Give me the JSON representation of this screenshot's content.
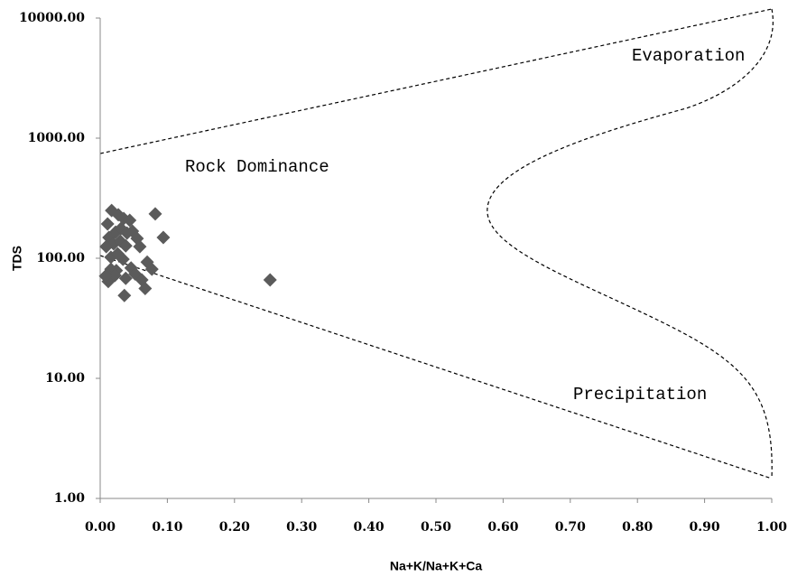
{
  "chart_data": {
    "type": "scatter",
    "x_label": "Na+K/Na+K+Ca",
    "y_label": "TDS",
    "annotations": [
      "Evaporation",
      "Rock Dominance",
      "Precipitation"
    ],
    "x": [
      0.017,
      0.027,
      0.011,
      0.035,
      0.044,
      0.082,
      0.023,
      0.031,
      0.04,
      0.048,
      0.055,
      0.013,
      0.02,
      0.03,
      0.038,
      0.059,
      0.009,
      0.016,
      0.026,
      0.034,
      0.094,
      0.016,
      0.024,
      0.046,
      0.052,
      0.07,
      0.077,
      0.012,
      0.022,
      0.038,
      0.062,
      0.067,
      0.036,
      0.253,
      0.008
    ],
    "values": [
      250,
      230,
      193,
      214,
      207,
      234,
      165,
      177,
      162,
      168,
      146,
      149,
      132,
      139,
      127,
      125,
      125,
      102,
      109,
      98,
      149,
      81,
      79,
      83,
      74,
      93,
      81,
      64,
      72,
      68,
      66,
      56,
      49,
      66,
      71
    ],
    "color": "#5b5b5b",
    "log_y": true,
    "grid": false,
    "xlim": [
      0,
      1
    ],
    "ylim": [
      1,
      10000
    ],
    "xticks": [
      {
        "value": 0,
        "label": "0.00"
      },
      {
        "value": 0.1,
        "label": "0.10"
      },
      {
        "value": 0.2,
        "label": "0.20"
      },
      {
        "value": 0.3,
        "label": "0.30"
      },
      {
        "value": 0.4,
        "label": "0.40"
      },
      {
        "value": 0.5,
        "label": "0.50"
      },
      {
        "value": 0.6,
        "label": "0.60"
      },
      {
        "value": 0.7,
        "label": "0.70"
      },
      {
        "value": 0.8,
        "label": "0.80"
      },
      {
        "value": 0.9,
        "label": "0.90"
      },
      {
        "value": 1,
        "label": "1.00"
      }
    ],
    "yticks": [
      {
        "value": 1,
        "label": "1.00"
      },
      {
        "value": 10,
        "label": "10.00"
      },
      {
        "value": 100,
        "label": "100.00"
      },
      {
        "value": 1000,
        "label": "1000.00"
      },
      {
        "value": 10000,
        "label": "10000.00"
      }
    ]
  }
}
